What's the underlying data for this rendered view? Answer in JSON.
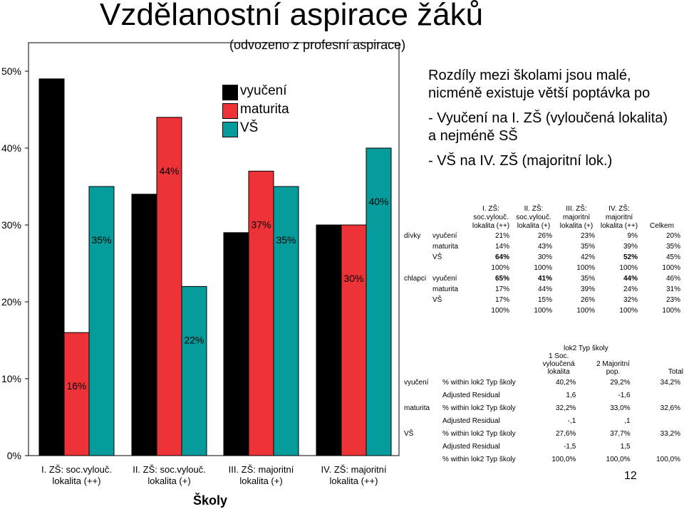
{
  "title": "Vzdělanostní aspirace žáků",
  "subtitle": "(odvozeno z profesní aspirace)",
  "chart_data": {
    "type": "bar",
    "xlabel": "Školy",
    "ylim": [
      0,
      0.5
    ],
    "y_ticks": [
      "0%",
      "10%",
      "20%",
      "30%",
      "40%",
      "50%"
    ],
    "categories": [
      [
        "I. ZŠ: soc.vylouč.",
        "lokalita (++)"
      ],
      [
        "II. ZŠ: soc.vylouč.",
        "lokalita (+)"
      ],
      [
        "III. ZŠ: majoritní",
        "lokalita (+)"
      ],
      [
        "IV. ZŠ: majoritní",
        "lokalita (++)"
      ]
    ],
    "series": [
      {
        "name": "vyučení",
        "color": "#000000",
        "values": [
          0.49,
          0.34,
          0.29,
          0.3
        ],
        "labels": [
          "49%",
          "34%",
          "29%",
          "30%"
        ]
      },
      {
        "name": "maturita",
        "color": "#ee3338",
        "values": [
          0.16,
          0.44,
          0.37,
          0.3
        ],
        "labels": [
          "16%",
          "44%",
          "37%",
          "30%"
        ]
      },
      {
        "name": "VŠ",
        "color": "#069c9c",
        "values": [
          0.35,
          0.22,
          0.35,
          0.4
        ],
        "labels": [
          "35%",
          "22%",
          "35%",
          "40%"
        ]
      }
    ],
    "legend_position": "top-center"
  },
  "note": {
    "intro": "Rozdíly mezi školami jsou malé, nicméně existuje větší poptávka po",
    "point1": "- Vyučení na I. ZŠ (vyloučená lokalita) a nejméně SŠ",
    "point2": "- VŠ na IV. ZŠ (majoritní lok.)"
  },
  "table1": {
    "headers": [
      [
        "I. ZŠ:",
        "soc.vylouč.",
        "lokalita (++)"
      ],
      [
        "II. ZŠ:",
        "soc.vylouč.",
        "lokalita (+)"
      ],
      [
        "III. ZŠ:",
        "majoritní",
        "lokalita (+)"
      ],
      [
        "IV. ZŠ:",
        "majoritní",
        "lokalita (++)"
      ],
      [
        "Celkem"
      ]
    ],
    "rows": [
      {
        "group": "dívky",
        "label": "vyučení",
        "values": [
          "21%",
          "26%",
          "23%",
          "9%",
          "20%"
        ],
        "bold": [
          false,
          false,
          false,
          false,
          false
        ]
      },
      {
        "group": "",
        "label": "maturita",
        "values": [
          "14%",
          "43%",
          "35%",
          "39%",
          "35%"
        ],
        "bold": [
          false,
          false,
          false,
          false,
          false
        ]
      },
      {
        "group": "",
        "label": "VŠ",
        "values": [
          "64%",
          "30%",
          "42%",
          "52%",
          "45%"
        ],
        "bold": [
          true,
          false,
          false,
          true,
          false
        ]
      },
      {
        "group": "",
        "label": "",
        "values": [
          "100%",
          "100%",
          "100%",
          "100%",
          "100%"
        ],
        "bold": [
          false,
          false,
          false,
          false,
          false
        ]
      },
      {
        "group": "chlapci",
        "label": "vyučení",
        "values": [
          "65%",
          "41%",
          "35%",
          "44%",
          "46%"
        ],
        "bold": [
          true,
          true,
          false,
          true,
          false
        ]
      },
      {
        "group": "",
        "label": "maturita",
        "values": [
          "17%",
          "44%",
          "39%",
          "24%",
          "31%"
        ],
        "bold": [
          false,
          false,
          false,
          false,
          false
        ]
      },
      {
        "group": "",
        "label": "VŠ",
        "values": [
          "17%",
          "15%",
          "26%",
          "32%",
          "23%"
        ],
        "bold": [
          false,
          false,
          false,
          false,
          false
        ]
      },
      {
        "group": "",
        "label": "",
        "values": [
          "100%",
          "100%",
          "100%",
          "100%",
          "100%"
        ],
        "bold": [
          false,
          false,
          false,
          false,
          false
        ]
      }
    ]
  },
  "table2": {
    "group_header": "lok2 Typ školy",
    "col_headers": [
      [
        "1 Soc.",
        "vyloučená",
        "lokalita"
      ],
      [
        "2 Majoritní",
        "pop."
      ],
      [
        "Total"
      ]
    ],
    "rows": [
      {
        "group": "vyučení",
        "label": "% within lok2 Typ školy",
        "values": [
          "40,2%",
          "29,2%",
          "34,2%"
        ]
      },
      {
        "group": "",
        "label": "Adjusted Residual",
        "values": [
          "1,6",
          "-1,6",
          ""
        ]
      },
      {
        "group": "maturita",
        "label": "% within lok2 Typ školy",
        "values": [
          "32,2%",
          "33,0%",
          "32,6%"
        ]
      },
      {
        "group": "",
        "label": "Adjusted Residual",
        "values": [
          "-,1",
          ",1",
          ""
        ]
      },
      {
        "group": "VŠ",
        "label": "% within lok2 Typ školy",
        "values": [
          "27,6%",
          "37,7%",
          "33,2%"
        ]
      },
      {
        "group": "",
        "label": "Adjusted Residual",
        "values": [
          "-1,5",
          "1,5",
          ""
        ]
      },
      {
        "group": "",
        "label": "% within lok2 Typ školy",
        "values": [
          "100,0%",
          "100,0%",
          "100,0%"
        ]
      }
    ]
  },
  "page_number": "12"
}
